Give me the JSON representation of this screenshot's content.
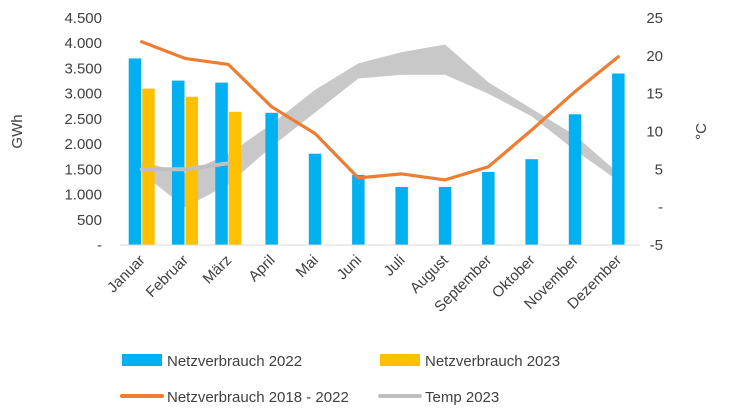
{
  "chart_data": {
    "type": "bar",
    "categories": [
      "Januar",
      "Februar",
      "März",
      "April",
      "Mai",
      "Juni",
      "Juli",
      "August",
      "September",
      "Oktober",
      "November",
      "Dezember"
    ],
    "series": [
      {
        "name": "Netzverbrauch 2022",
        "type": "bar",
        "axis": "left",
        "color": "#00B0F0",
        "values": [
          3700,
          3260,
          3220,
          2620,
          1810,
          1390,
          1150,
          1150,
          1450,
          1700,
          2590,
          3400
        ]
      },
      {
        "name": "Netzverbrauch 2023",
        "type": "bar",
        "axis": "left",
        "color": "#FFC000",
        "values": [
          3100,
          2940,
          2640,
          null,
          null,
          null,
          null,
          null,
          null,
          null,
          null,
          null
        ]
      },
      {
        "name": "Netzverbrauch 2018 - 2022",
        "type": "line",
        "axis": "left",
        "color": "#ED7D31",
        "values": [
          4030,
          3700,
          3580,
          2740,
          2210,
          1330,
          1410,
          1290,
          1550,
          2280,
          3040,
          3730
        ]
      },
      {
        "name": "Temp 2023",
        "type": "line",
        "axis": "right",
        "color": "#BFBFBF",
        "values": [
          5.0,
          5.0,
          5.8,
          null,
          null,
          null,
          null,
          null,
          null,
          null,
          null,
          null
        ]
      }
    ],
    "band": {
      "axis": "right",
      "color": "#C8C8C8",
      "lower": [
        4.5,
        0.0,
        3.0,
        8.0,
        12.5,
        17.0,
        17.5,
        17.5,
        15.0,
        12.0,
        7.5,
        3.5
      ],
      "upper": [
        6.0,
        4.5,
        7.0,
        11.0,
        15.5,
        19.0,
        20.5,
        21.5,
        16.5,
        13.0,
        9.5,
        4.5
      ]
    },
    "y_left": {
      "label": "GWh",
      "min": 0,
      "max": 4500,
      "step": 500,
      "tick_labels": [
        "-",
        "500",
        "1.000",
        "1.500",
        "2.000",
        "2.500",
        "3.000",
        "3.500",
        "4.000",
        "4.500"
      ]
    },
    "y_right": {
      "label": "°C",
      "min": -5,
      "max": 25,
      "step": 5,
      "tick_labels": [
        "-5",
        "-",
        "5",
        "10",
        "15",
        "20",
        "25"
      ]
    },
    "legend": {
      "placement": "bottom",
      "entries": [
        {
          "label": "Netzverbrauch 2022",
          "kind": "bar",
          "color": "#00B0F0"
        },
        {
          "label": "Netzverbrauch 2023",
          "kind": "bar",
          "color": "#FFC000"
        },
        {
          "label": "Netzverbrauch 2018 - 2022",
          "kind": "line",
          "color": "#ED7D31"
        },
        {
          "label": "Temp 2023",
          "kind": "line",
          "color": "#BFBFBF"
        }
      ]
    },
    "grid": false
  }
}
